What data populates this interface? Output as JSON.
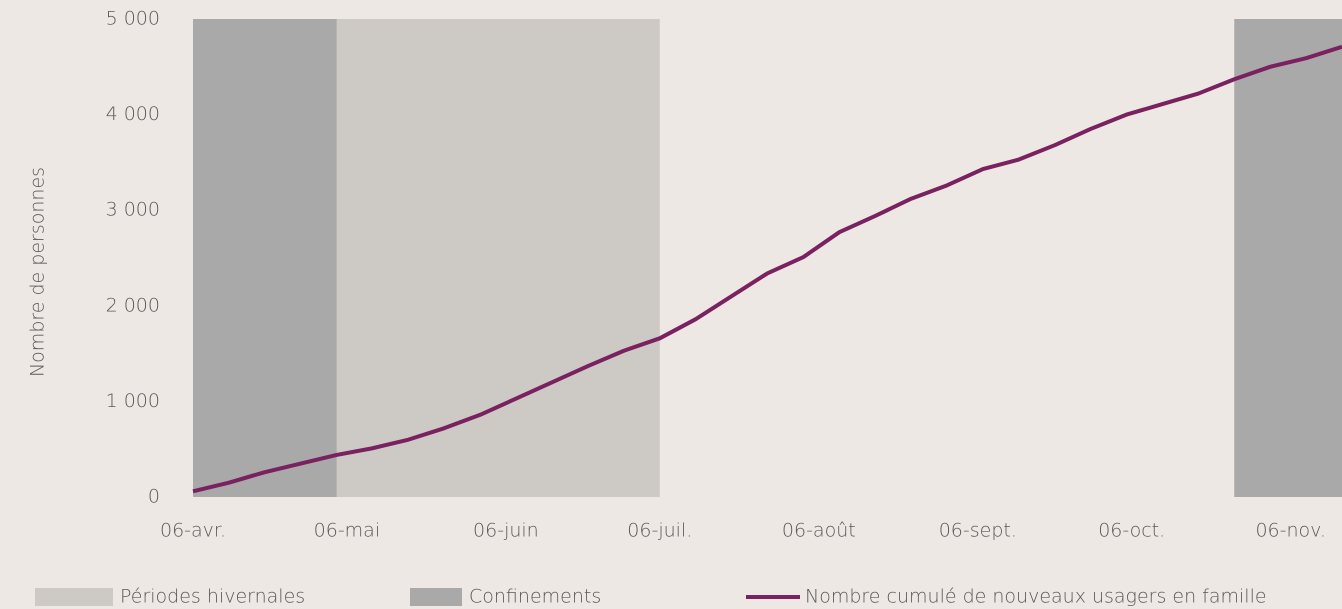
{
  "chart_data": {
    "type": "line",
    "y_label": "Nombre de personnes",
    "x": [
      0,
      7,
      14,
      21,
      28,
      35,
      42,
      49,
      56,
      63,
      70,
      77,
      84,
      91,
      98,
      105,
      112,
      119,
      126,
      133,
      140,
      147,
      154,
      161,
      168,
      175,
      182,
      189,
      196,
      203,
      210,
      217,
      224
    ],
    "series": [
      {
        "name": "Nombre cumulé de nouveaux usagers en famille",
        "color": "#7a2160",
        "values": [
          60,
          150,
          260,
          350,
          440,
          510,
          600,
          720,
          860,
          1030,
          1200,
          1370,
          1530,
          1660,
          1860,
          2100,
          2340,
          2510,
          2770,
          2940,
          3120,
          3260,
          3430,
          3530,
          3680,
          3850,
          4000,
          4110,
          4220,
          4370,
          4500,
          4590,
          4710
        ]
      }
    ],
    "bands": [
      {
        "name": "Périodes hivernales",
        "color": "#cdcac6",
        "ranges": [
          [
            0,
            91
          ]
        ]
      },
      {
        "name": "Confinements",
        "color": "#a9a9a9",
        "ranges": [
          [
            0,
            28
          ],
          [
            203,
            224
          ]
        ]
      }
    ],
    "xlim": [
      0,
      224
    ],
    "xticks": [
      {
        "value": 0,
        "label": "06-avr."
      },
      {
        "value": 30,
        "label": "06-mai"
      },
      {
        "value": 61,
        "label": "06-juin"
      },
      {
        "value": 91,
        "label": "06-juil."
      },
      {
        "value": 122,
        "label": "06-août"
      },
      {
        "value": 153,
        "label": "06-sept."
      },
      {
        "value": 183,
        "label": "06-oct."
      },
      {
        "value": 214,
        "label": "06-nov."
      }
    ],
    "ylim": [
      0,
      5000
    ],
    "yticks": [
      0,
      {
        "value": 1000,
        "label": "1 000"
      },
      {
        "value": 2000,
        "label": "2 000"
      },
      {
        "value": 3000,
        "label": "3 000"
      },
      {
        "value": 4000,
        "label": "4 000"
      },
      {
        "value": 5000,
        "label": "5 000"
      }
    ]
  }
}
